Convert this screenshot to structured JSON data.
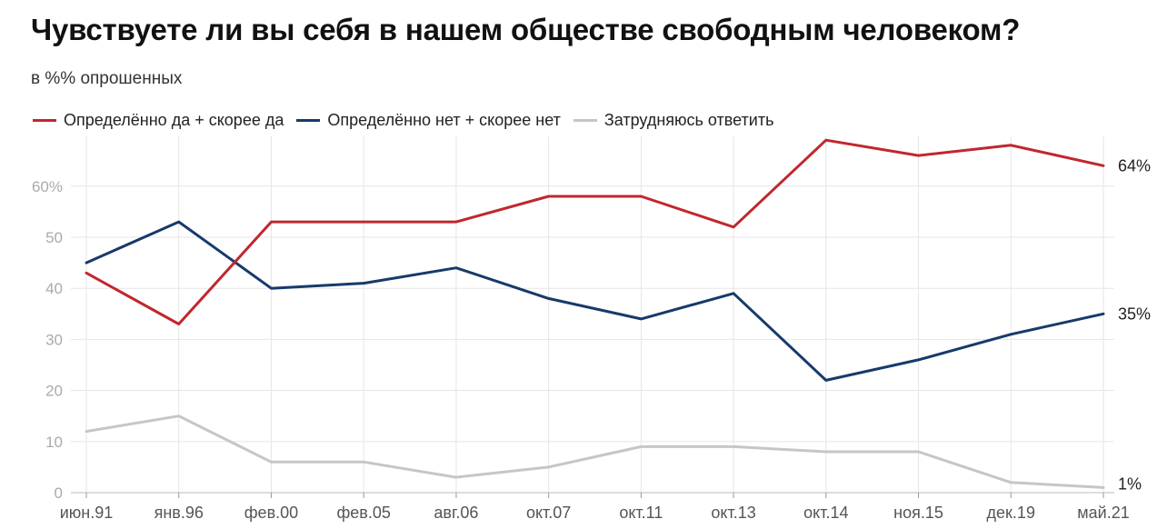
{
  "title": "Чувствуете ли вы себя в нашем обществе свободным человеком?",
  "subtitle": "в %% опрошенных",
  "chart_data": {
    "type": "line",
    "categories": [
      "июн.91",
      "янв.96",
      "фев.00",
      "фев.05",
      "авг.06",
      "окт.07",
      "окт.11",
      "окт.13",
      "окт.14",
      "ноя.15",
      "дек.19",
      "май.21"
    ],
    "ylim": [
      0,
      70
    ],
    "yticks": [
      0,
      10,
      20,
      30,
      40,
      50,
      60
    ],
    "ytick_labels": [
      "0",
      "10",
      "20",
      "30",
      "40",
      "50",
      "60%"
    ],
    "grid": true,
    "legend_position": "top-left",
    "series": [
      {
        "name": "Определённо да + скорее да",
        "color": "#c0272d",
        "values": [
          43,
          33,
          53,
          53,
          53,
          58,
          58,
          52,
          69,
          66,
          68,
          64
        ],
        "end_label": "64%"
      },
      {
        "name": "Определённо нет + скорее нет",
        "color": "#163a6b",
        "values": [
          45,
          53,
          40,
          41,
          44,
          38,
          34,
          39,
          22,
          26,
          31,
          35
        ],
        "end_label": "35%"
      },
      {
        "name": "Затрудняюсь ответить",
        "color": "#c6c6c6",
        "values": [
          12,
          15,
          6,
          6,
          3,
          5,
          9,
          9,
          8,
          8,
          2,
          1
        ],
        "end_label": "1%"
      }
    ]
  }
}
